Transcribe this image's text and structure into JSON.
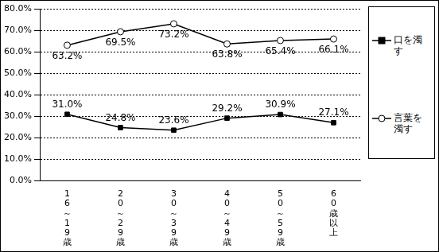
{
  "chart_data": {
    "type": "line",
    "categories": [
      "16～19歳",
      "20～29歳",
      "30～39歳",
      "40～49歳",
      "50～59歳",
      "60歳以上"
    ],
    "series": [
      {
        "name": "口を濁す",
        "color": "#000000",
        "marker": "square",
        "line_style": "solid",
        "values": [
          31.0,
          24.8,
          23.6,
          29.2,
          30.9,
          27.1
        ],
        "value_labels": [
          "31.0%",
          "24.8%",
          "23.6%",
          "29.2%",
          "30.9%",
          "27.1%"
        ]
      },
      {
        "name": "言葉を濁す",
        "color": "#000000",
        "marker": "circle",
        "line_style": "solid",
        "values": [
          63.2,
          69.5,
          73.2,
          63.8,
          65.4,
          66.1
        ],
        "value_labels": [
          "63.2%",
          "69.5%",
          "73.2%",
          "63.8%",
          "65.4%",
          "66.1%"
        ]
      }
    ],
    "ylim": [
      0,
      80
    ],
    "yticks": [
      {
        "value": 0,
        "label": "0.0%"
      },
      {
        "value": 10,
        "label": "10.0%"
      },
      {
        "value": 20,
        "label": "20.0%"
      },
      {
        "value": 30,
        "label": "30.0%"
      },
      {
        "value": 40,
        "label": "40.0%"
      },
      {
        "value": 50,
        "label": "50.0%"
      },
      {
        "value": 60,
        "label": "60.0%"
      },
      {
        "value": 70,
        "label": "70.0%"
      },
      {
        "value": 80,
        "label": "80.0%"
      }
    ],
    "grid": true,
    "legend": "right",
    "data_labels": true
  }
}
